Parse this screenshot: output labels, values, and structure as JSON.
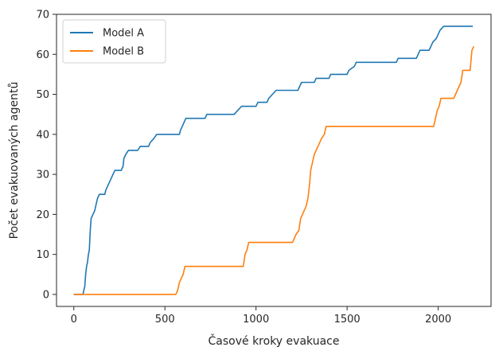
{
  "chart_data": {
    "type": "line",
    "xlabel": "Časové kroky evakuace",
    "ylabel": "Počet evakuovaných agentů",
    "xlim": [
      -95,
      2290
    ],
    "ylim": [
      -3,
      70
    ],
    "xticks": [
      0,
      500,
      1000,
      1500,
      2000
    ],
    "yticks": [
      0,
      10,
      20,
      30,
      40,
      50,
      60,
      70
    ],
    "grid": false,
    "legend": "top-left",
    "series": [
      {
        "name": "Model A",
        "color": "#1f77b4",
        "points": [
          [
            0,
            0
          ],
          [
            50,
            0
          ],
          [
            55,
            1
          ],
          [
            60,
            2
          ],
          [
            65,
            5
          ],
          [
            70,
            7
          ],
          [
            75,
            8
          ],
          [
            80,
            10
          ],
          [
            85,
            11
          ],
          [
            90,
            16
          ],
          [
            95,
            19
          ],
          [
            105,
            20
          ],
          [
            115,
            21
          ],
          [
            120,
            22
          ],
          [
            130,
            24
          ],
          [
            140,
            25
          ],
          [
            170,
            25
          ],
          [
            175,
            26
          ],
          [
            185,
            27
          ],
          [
            195,
            28
          ],
          [
            205,
            29
          ],
          [
            215,
            30
          ],
          [
            225,
            31
          ],
          [
            260,
            31
          ],
          [
            270,
            32
          ],
          [
            275,
            34
          ],
          [
            285,
            35
          ],
          [
            300,
            36
          ],
          [
            350,
            36
          ],
          [
            365,
            37
          ],
          [
            410,
            37
          ],
          [
            420,
            38
          ],
          [
            440,
            39
          ],
          [
            455,
            40
          ],
          [
            580,
            40
          ],
          [
            585,
            41
          ],
          [
            595,
            42
          ],
          [
            605,
            43
          ],
          [
            615,
            44
          ],
          [
            720,
            44
          ],
          [
            730,
            45
          ],
          [
            880,
            45
          ],
          [
            900,
            46
          ],
          [
            920,
            47
          ],
          [
            1000,
            47
          ],
          [
            1010,
            48
          ],
          [
            1060,
            48
          ],
          [
            1070,
            49
          ],
          [
            1090,
            50
          ],
          [
            1110,
            51
          ],
          [
            1230,
            51
          ],
          [
            1240,
            52
          ],
          [
            1250,
            53
          ],
          [
            1320,
            53
          ],
          [
            1330,
            54
          ],
          [
            1400,
            54
          ],
          [
            1410,
            55
          ],
          [
            1500,
            55
          ],
          [
            1510,
            56
          ],
          [
            1540,
            57
          ],
          [
            1550,
            58
          ],
          [
            1770,
            58
          ],
          [
            1780,
            59
          ],
          [
            1880,
            59
          ],
          [
            1890,
            60
          ],
          [
            1900,
            61
          ],
          [
            1950,
            61
          ],
          [
            1960,
            62
          ],
          [
            1970,
            63
          ],
          [
            1990,
            64
          ],
          [
            2000,
            65
          ],
          [
            2010,
            66
          ],
          [
            2030,
            67
          ],
          [
            2190,
            67
          ]
        ]
      },
      {
        "name": "Model B",
        "color": "#ff7f0e",
        "points": [
          [
            0,
            0
          ],
          [
            560,
            0
          ],
          [
            570,
            1
          ],
          [
            580,
            3
          ],
          [
            590,
            4
          ],
          [
            600,
            5
          ],
          [
            610,
            7
          ],
          [
            930,
            7
          ],
          [
            940,
            10
          ],
          [
            950,
            11
          ],
          [
            960,
            13
          ],
          [
            1200,
            13
          ],
          [
            1210,
            14
          ],
          [
            1220,
            15
          ],
          [
            1235,
            16
          ],
          [
            1245,
            19
          ],
          [
            1255,
            20
          ],
          [
            1265,
            21
          ],
          [
            1275,
            22
          ],
          [
            1285,
            24
          ],
          [
            1290,
            26
          ],
          [
            1295,
            28
          ],
          [
            1300,
            31
          ],
          [
            1305,
            32
          ],
          [
            1315,
            34
          ],
          [
            1320,
            35
          ],
          [
            1330,
            36
          ],
          [
            1340,
            37
          ],
          [
            1350,
            38
          ],
          [
            1360,
            39
          ],
          [
            1375,
            40
          ],
          [
            1385,
            42
          ],
          [
            1975,
            42
          ],
          [
            1985,
            44
          ],
          [
            1995,
            46
          ],
          [
            2005,
            47
          ],
          [
            2015,
            49
          ],
          [
            2085,
            49
          ],
          [
            2095,
            50
          ],
          [
            2105,
            51
          ],
          [
            2125,
            53
          ],
          [
            2135,
            56
          ],
          [
            2175,
            56
          ],
          [
            2185,
            61
          ],
          [
            2195,
            62
          ]
        ]
      }
    ]
  }
}
